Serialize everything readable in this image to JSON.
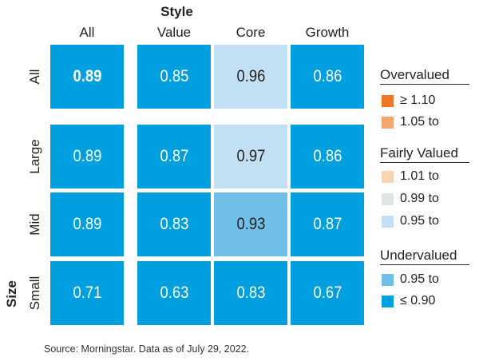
{
  "chart_data": {
    "type": "heatmap",
    "title": "Style",
    "ylabel": "Size",
    "columns": [
      "All",
      "Value",
      "Core",
      "Growth"
    ],
    "rows": [
      "All",
      "Large",
      "Mid",
      "Small"
    ],
    "values": [
      [
        0.89,
        0.85,
        0.96,
        0.86
      ],
      [
        0.89,
        0.87,
        0.97,
        0.86
      ],
      [
        0.89,
        0.83,
        0.93,
        0.87
      ],
      [
        0.71,
        0.63,
        0.83,
        0.67
      ]
    ],
    "display": [
      [
        "0.89",
        "0.85",
        "0.96",
        "0.86"
      ],
      [
        "0.89",
        "0.87",
        "0.97",
        "0.86"
      ],
      [
        "0.89",
        "0.83",
        "0.93",
        "0.87"
      ],
      [
        "0.71",
        "0.63",
        "0.83",
        "0.67"
      ]
    ],
    "highlight_cell": [
      0,
      0
    ],
    "legend": [
      {
        "heading": "Overvalued",
        "items": [
          {
            "label": "≥ 1.10",
            "color": "#ef7622"
          },
          {
            "label": "1.05 to",
            "color": "#f5a56e"
          }
        ]
      },
      {
        "heading": "Fairly Valued",
        "items": [
          {
            "label": "1.01 to",
            "color": "#f8d4b4"
          },
          {
            "label": "0.99 to",
            "color": "#e2e5e6"
          },
          {
            "label": "0.95 to",
            "color": "#c2e0f4"
          }
        ]
      },
      {
        "heading": "Undervalued",
        "items": [
          {
            "label": "0.95 to",
            "color": "#6fbfe8"
          },
          {
            "label": "≤ 0.90",
            "color": "#00a0e0"
          }
        ]
      }
    ],
    "colors": {
      "le_0_90": "#00a0e0",
      "undervalued_0_95": "#6fbfe8",
      "fair_0_95": "#c2e0f4",
      "dark_text": "#222222",
      "light_text": "#ffffff"
    }
  },
  "source": "Source: Morningstar. Data as of July 29, 2022."
}
